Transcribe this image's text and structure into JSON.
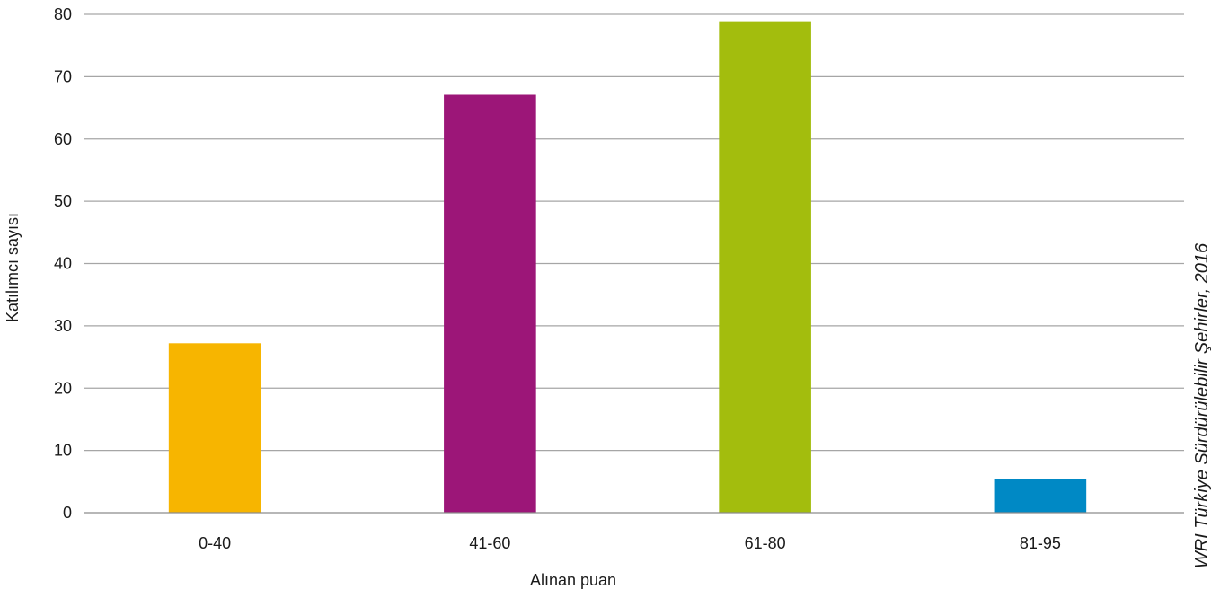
{
  "chart_data": {
    "type": "bar",
    "categories": [
      "0-40",
      "41-60",
      "61-80",
      "81-95"
    ],
    "values": [
      27.2,
      67.1,
      78.9,
      5.4
    ],
    "colors": [
      "#f7b500",
      "#9c1678",
      "#a3bd0d",
      "#0089c5"
    ],
    "xlabel": "Alınan puan",
    "ylabel": "Katılımcı sayısı",
    "ylim": [
      0,
      80
    ],
    "yticks": [
      0,
      10,
      20,
      30,
      40,
      50,
      60,
      70,
      80
    ],
    "grid": true,
    "source": "WRI Türkiye Sürdürülebilir Şehirler, 2016"
  }
}
